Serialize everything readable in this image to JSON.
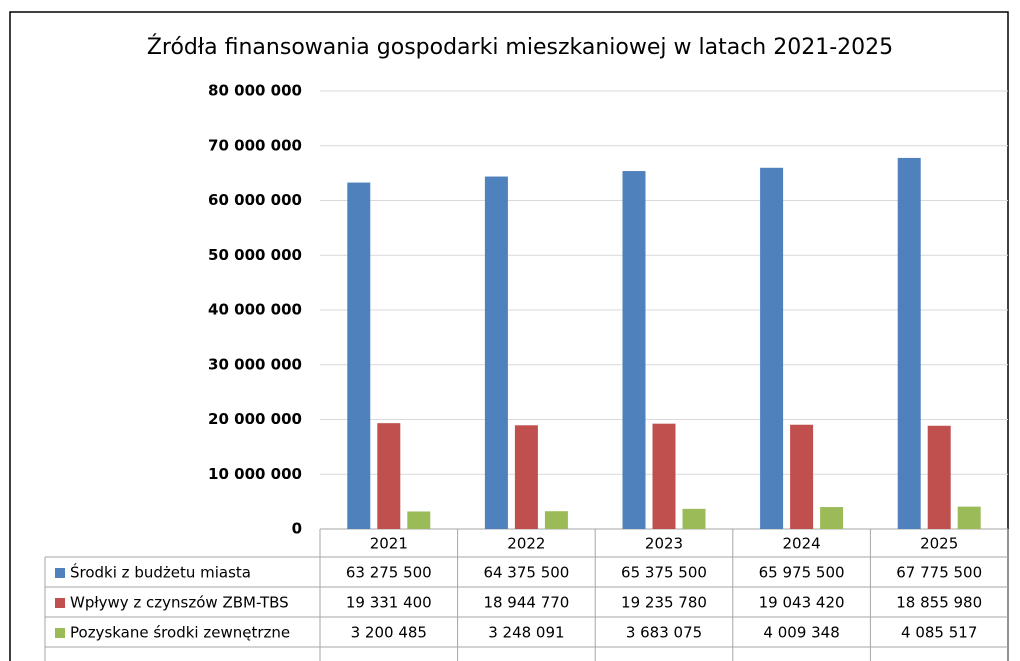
{
  "chart_data": {
    "type": "bar",
    "title": "Źródła finansowania gospodarki mieszkaniowej w latach 2021-2025",
    "categories": [
      "2021",
      "2022",
      "2023",
      "2024",
      "2025"
    ],
    "series": [
      {
        "name": "Środki z budżetu miasta",
        "color": "#4f81bd",
        "values": [
          63275500,
          64375500,
          65375500,
          65975500,
          67775500
        ],
        "value_labels": [
          "63 275 500",
          "64 375 500",
          "65 375 500",
          "65 975 500",
          "67 775 500"
        ]
      },
      {
        "name": "Wpływy z czynszów ZBM-TBS",
        "color": "#c0504d",
        "values": [
          19331400,
          18944770,
          19235780,
          19043420,
          18855980
        ],
        "value_labels": [
          "19 331 400",
          "18 944 770",
          "19 235 780",
          "19 043 420",
          "18 855 980"
        ]
      },
      {
        "name": "Pozyskane środki zewnętrzne",
        "color": "#9bbb59",
        "values": [
          3200485,
          3248091,
          3683075,
          4009348,
          4085517
        ],
        "value_labels": [
          "3 200 485",
          "3 248 091",
          "3 683 075",
          "4 009 348",
          "4 085 517"
        ]
      }
    ],
    "ylim": [
      0,
      80000000
    ],
    "yticks": [
      0,
      {
        "value": 10000000,
        "label": "10 000 000"
      },
      {
        "value": 20000000,
        "label": "20 000 000"
      },
      {
        "value": 30000000,
        "label": "30 000 000"
      },
      {
        "value": 40000000,
        "label": "40 000 000"
      },
      {
        "value": 50000000,
        "label": "50 000 000"
      },
      {
        "value": 60000000,
        "label": "60 000 000"
      },
      {
        "value": 70000000,
        "label": "70 000 000"
      },
      {
        "value": 80000000,
        "label": "80 000 000"
      }
    ],
    "grid": true
  }
}
